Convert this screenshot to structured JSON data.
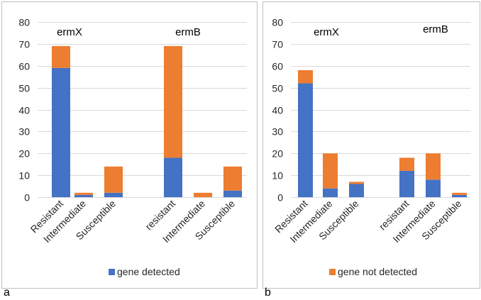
{
  "colors": {
    "detected": "#4472c4",
    "not_detected": "#ed7d31",
    "grid": "#d9d9d9",
    "frame": "#bfbfbf",
    "text": "#262626"
  },
  "panel_labels": [
    "a",
    "b"
  ],
  "chart_data": [
    {
      "type": "bar",
      "stacked": true,
      "panel": "a",
      "ylim": [
        0,
        80
      ],
      "yticks": [
        0,
        10,
        20,
        30,
        40,
        50,
        60,
        70,
        80
      ],
      "grid": true,
      "legend": "bottom",
      "group_labels": [
        "ermX",
        "ermB"
      ],
      "categories": [
        "Resistant",
        "Intermediate",
        "Susceptible",
        "",
        "resistant",
        "Intermediate",
        "Susceptible"
      ],
      "series": [
        {
          "name": "gene detected",
          "values": [
            59,
            1,
            2,
            null,
            18,
            0,
            3
          ]
        },
        {
          "name": "gene not detected",
          "values": [
            10,
            1,
            12,
            null,
            51,
            2,
            11
          ]
        }
      ],
      "legend_entries": [
        "gene detected"
      ]
    },
    {
      "type": "bar",
      "stacked": true,
      "panel": "b",
      "ylim": [
        0,
        80
      ],
      "yticks": [
        0,
        10,
        20,
        30,
        40,
        50,
        60,
        70,
        80
      ],
      "grid": true,
      "legend": "bottom",
      "group_labels": [
        "ermX",
        "ermB"
      ],
      "categories": [
        "Resistant",
        "Intermediate",
        "Susceptible",
        "",
        "resistant",
        "Intermediate",
        "Susceptible"
      ],
      "series": [
        {
          "name": "gene detected",
          "values": [
            52,
            4,
            6,
            null,
            12,
            8,
            1
          ]
        },
        {
          "name": "gene not detected",
          "values": [
            6,
            16,
            1,
            null,
            6,
            12,
            1
          ]
        }
      ],
      "legend_entries": [
        "gene not detected"
      ]
    }
  ]
}
